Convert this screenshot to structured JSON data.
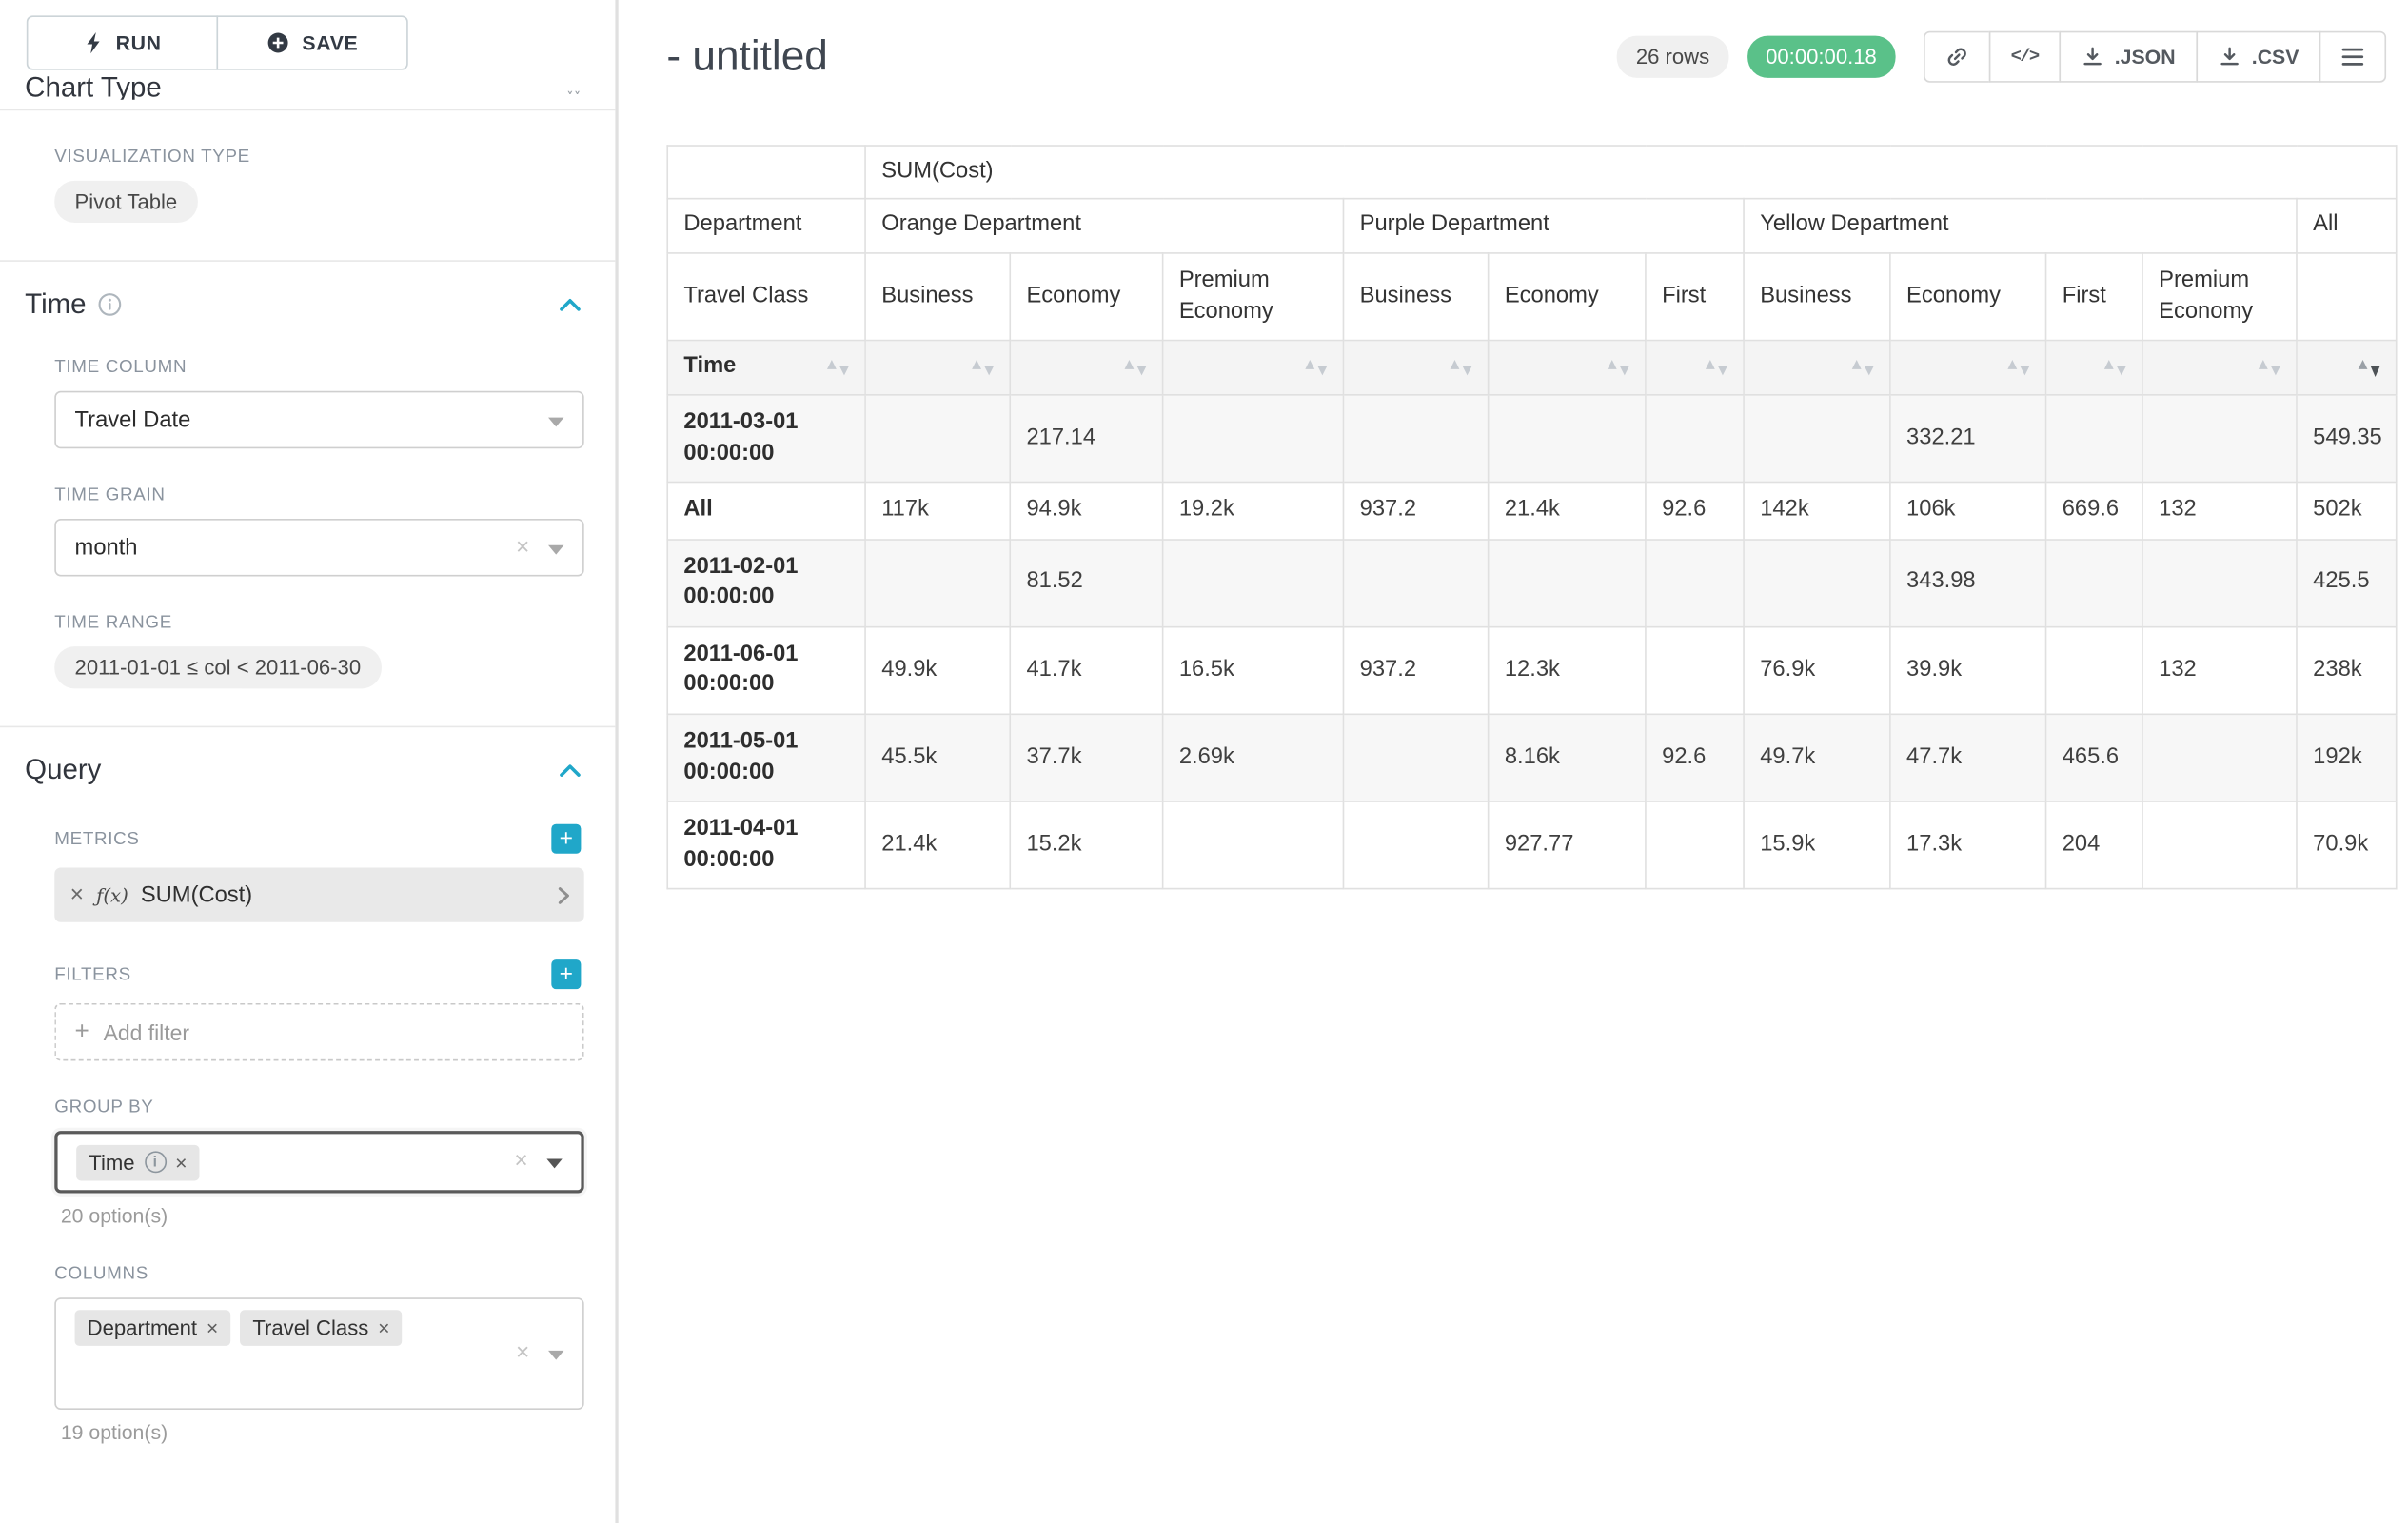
{
  "colors": {
    "accent": "#20a7c9",
    "success": "#5ac189"
  },
  "icons": {
    "run": "lightning-bolt-icon",
    "save": "plus-circle-icon",
    "section_info": "info-circle-icon",
    "section_collapse": "chevron-up-icon",
    "select_caret": "caret-down-icon",
    "clear": "x-icon",
    "add_metric_filter": "plus-square-icon",
    "metric_function": "function-fx-icon",
    "metric_expand": "chevron-right-icon",
    "share": "link-icon",
    "embed": "code-icon",
    "download": "download-icon",
    "menu": "hamburger-icon",
    "table_sort": "sort-arrows-icon"
  },
  "left_panel": {
    "run_label": "RUN",
    "save_label": "SAVE",
    "clipped_heading": "Chart Type",
    "viz_type": {
      "label": "VISUALIZATION TYPE",
      "value": "Pivot Table"
    },
    "time": {
      "title": "Time",
      "time_column": {
        "label": "TIME COLUMN",
        "value": "Travel Date"
      },
      "time_grain": {
        "label": "TIME GRAIN",
        "value": "month"
      },
      "time_range": {
        "label": "TIME RANGE",
        "value": "2011-01-01 ≤ col < 2011-06-30"
      }
    },
    "query": {
      "title": "Query",
      "metrics": {
        "label": "METRICS",
        "fx": "ƒ(x)",
        "value": "SUM(Cost)"
      },
      "filters": {
        "label": "FILTERS",
        "placeholder": "Add filter"
      },
      "group_by": {
        "label": "GROUP BY",
        "values": [
          "Time"
        ],
        "options_hint": "20 option(s)"
      },
      "columns": {
        "label": "COLUMNS",
        "values": [
          "Department",
          "Travel Class"
        ],
        "options_hint": "19 option(s)"
      }
    }
  },
  "header": {
    "title": "- untitled",
    "row_count_badge": "26 rows",
    "timer_badge": "00:00:00.18",
    "buttons": {
      "json": ".JSON",
      "csv": ".CSV"
    }
  },
  "pivot_table": {
    "metric_header": "SUM(Cost)",
    "department_row_label": "Department",
    "travel_class_row_label": "Travel Class",
    "time_row_label": "Time",
    "all_label": "All",
    "departments": [
      {
        "name": "Orange Department",
        "classes": [
          "Business",
          "Economy",
          "Premium Economy"
        ]
      },
      {
        "name": "Purple Department",
        "classes": [
          "Business",
          "Economy",
          "First"
        ]
      },
      {
        "name": "Yellow Department",
        "classes": [
          "Business",
          "Economy",
          "First",
          "Premium Economy"
        ]
      }
    ],
    "rows": [
      {
        "label": "2011-03-01 00:00:00",
        "values": [
          "",
          "217.14",
          "",
          "",
          "",
          "",
          "",
          "332.21",
          "",
          "",
          "549.35"
        ]
      },
      {
        "label": "All",
        "values": [
          "117k",
          "94.9k",
          "19.2k",
          "937.2",
          "21.4k",
          "92.6",
          "142k",
          "106k",
          "669.6",
          "132",
          "502k"
        ]
      },
      {
        "label": "2011-02-01 00:00:00",
        "values": [
          "",
          "81.52",
          "",
          "",
          "",
          "",
          "",
          "343.98",
          "",
          "",
          "425.5"
        ]
      },
      {
        "label": "2011-06-01 00:00:00",
        "values": [
          "49.9k",
          "41.7k",
          "16.5k",
          "937.2",
          "12.3k",
          "",
          "76.9k",
          "39.9k",
          "",
          "132",
          "238k"
        ]
      },
      {
        "label": "2011-05-01 00:00:00",
        "values": [
          "45.5k",
          "37.7k",
          "2.69k",
          "",
          "8.16k",
          "92.6",
          "49.7k",
          "47.7k",
          "465.6",
          "",
          "192k"
        ]
      },
      {
        "label": "2011-04-01 00:00:00",
        "values": [
          "21.4k",
          "15.2k",
          "",
          "",
          "927.77",
          "",
          "15.9k",
          "17.3k",
          "204",
          "",
          "70.9k"
        ]
      }
    ]
  }
}
